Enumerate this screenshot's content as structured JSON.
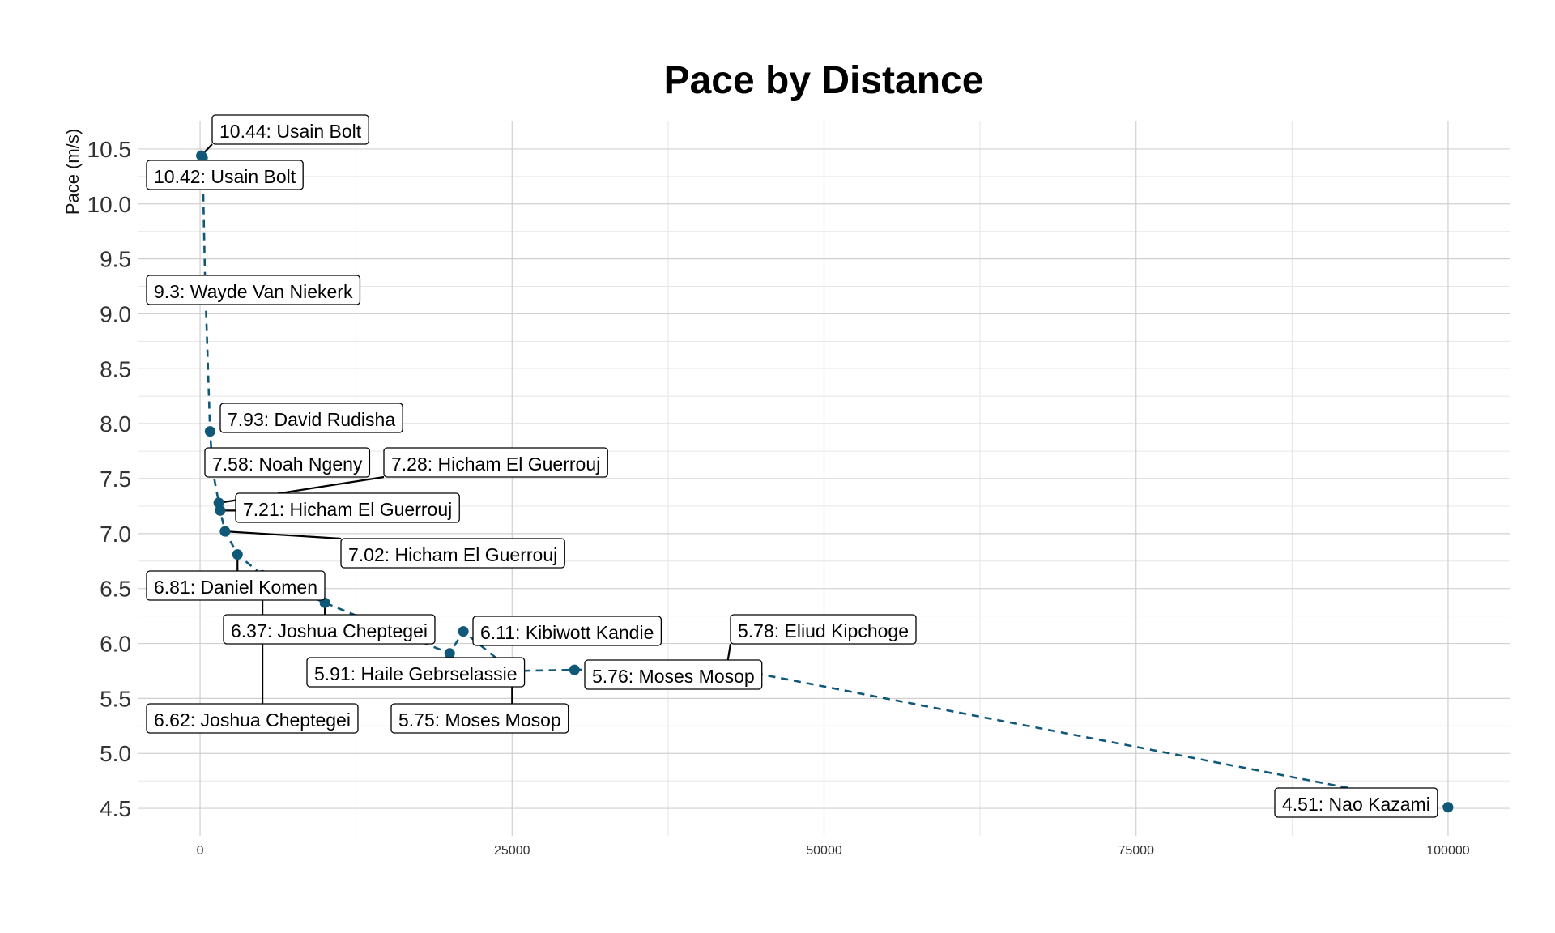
{
  "chart_data": {
    "type": "line",
    "title": "Pace by Distance",
    "xlabel": "",
    "ylabel": "Pace (m/s)",
    "xlim": [
      -5000,
      105000
    ],
    "ylim": [
      4.25,
      10.75
    ],
    "x_ticks": [
      0,
      25000,
      50000,
      75000,
      100000
    ],
    "y_ticks": [
      4.5,
      5.0,
      5.5,
      6.0,
      6.5,
      7.0,
      7.5,
      8.0,
      8.5,
      9.0,
      9.5,
      10.0,
      10.5
    ],
    "grid": true,
    "line_style": "dashed",
    "series_color": "#0f5878",
    "points": [
      {
        "x": 100,
        "y": 10.44,
        "label": "10.44: Usain Bolt"
      },
      {
        "x": 200,
        "y": 10.42,
        "label": "10.42: Usain Bolt"
      },
      {
        "x": 400,
        "y": 9.3,
        "label": "9.3: Wayde Van Niekerk"
      },
      {
        "x": 800,
        "y": 7.93,
        "label": "7.93: David Rudisha"
      },
      {
        "x": 1000,
        "y": 7.58,
        "label": "7.58: Noah Ngeny"
      },
      {
        "x": 1500,
        "y": 7.28,
        "label": "7.28: Hicham El Guerrouj"
      },
      {
        "x": 1609,
        "y": 7.21,
        "label": "7.21: Hicham El Guerrouj"
      },
      {
        "x": 2000,
        "y": 7.02,
        "label": "7.02: Hicham El Guerrouj"
      },
      {
        "x": 3000,
        "y": 6.81,
        "label": "6.81: Daniel Komen"
      },
      {
        "x": 5000,
        "y": 6.62,
        "label": "6.62: Joshua Cheptegei"
      },
      {
        "x": 10000,
        "y": 6.37,
        "label": "6.37: Joshua Cheptegei"
      },
      {
        "x": 20000,
        "y": 5.91,
        "label": "5.91: Haile Gebrselassie"
      },
      {
        "x": 21097,
        "y": 6.11,
        "label": "6.11: Kibiwott Kandie"
      },
      {
        "x": 25000,
        "y": 5.75,
        "label": "5.75: Moses Mosop"
      },
      {
        "x": 30000,
        "y": 5.76,
        "label": "5.76: Moses Mosop"
      },
      {
        "x": 42195,
        "y": 5.78,
        "label": "5.78: Eliud Kipchoge"
      },
      {
        "x": 100000,
        "y": 4.51,
        "label": "4.51: Nao Kazami"
      }
    ]
  }
}
